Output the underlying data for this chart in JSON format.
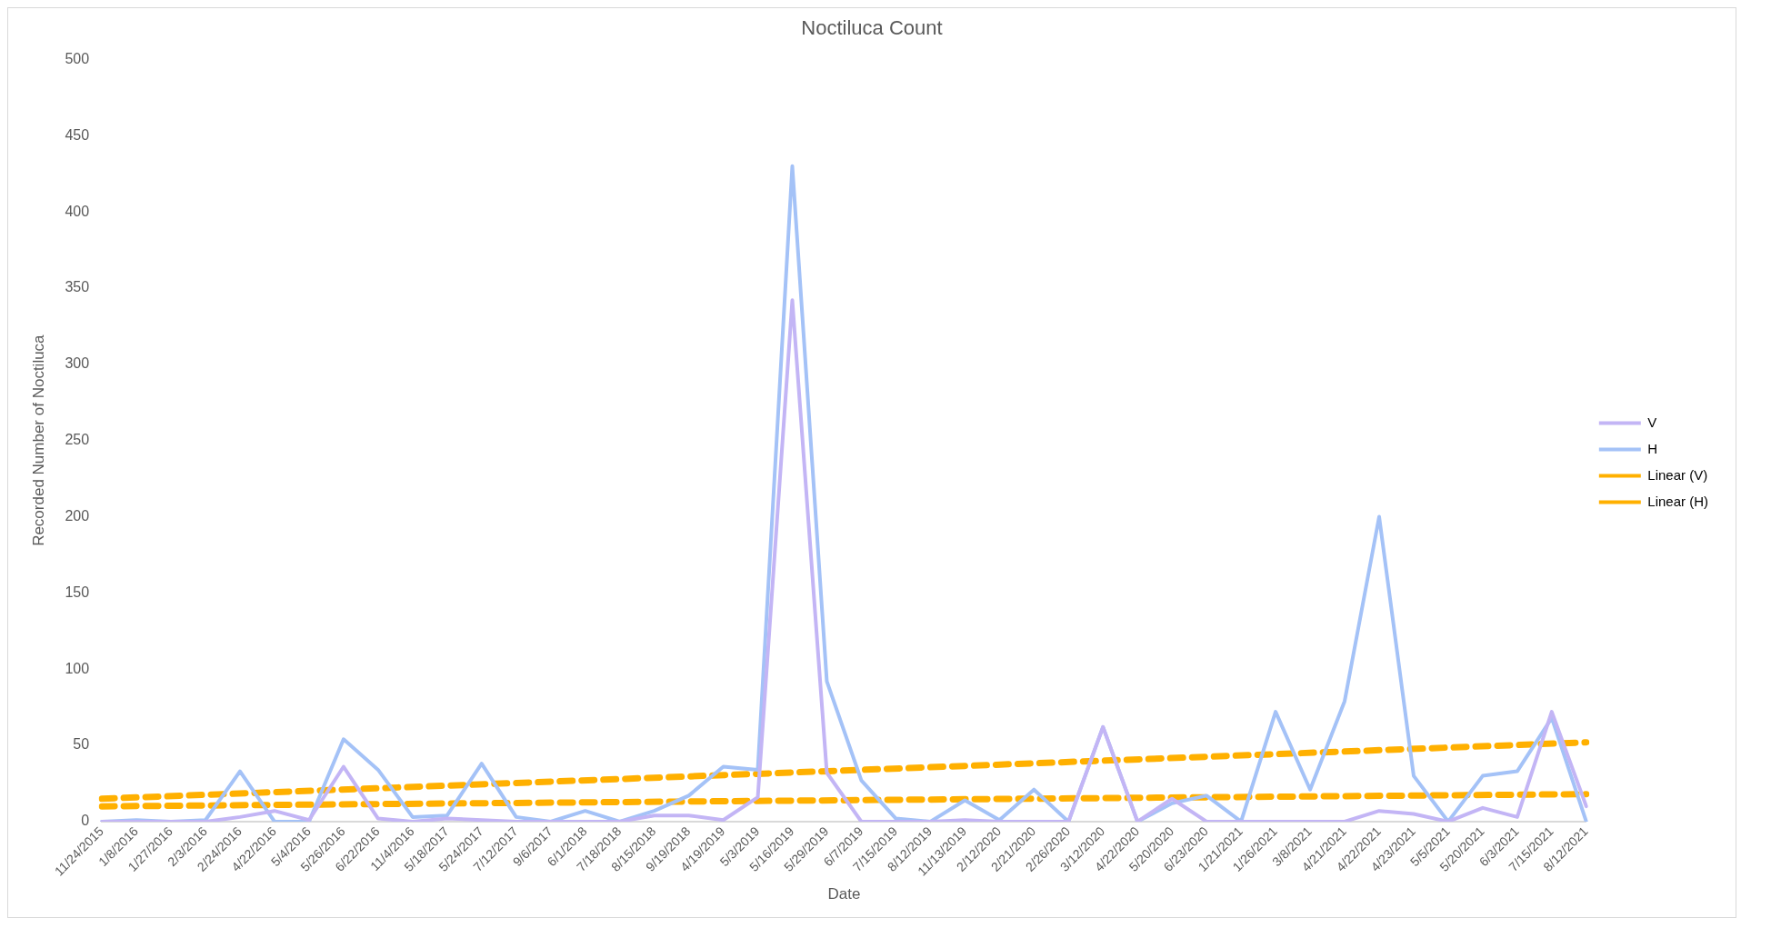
{
  "chart_data": {
    "type": "line",
    "title": "Noctiluca Count",
    "xlabel": "Date",
    "ylabel": "Recorded Number of Noctiluca",
    "categories": [
      "11/24/2015",
      "1/8/2016",
      "1/27/2016",
      "2/3/2016",
      "2/24/2016",
      "4/22/2016",
      "5/4/2016",
      "5/26/2016",
      "6/22/2016",
      "11/4/2016",
      "5/18/2017",
      "5/24/2017",
      "7/12/2017",
      "9/6/2017",
      "6/1/2018",
      "7/18/2018",
      "8/15/2018",
      "9/19/2018",
      "4/19/2019",
      "5/3/2019",
      "5/16/2019",
      "5/29/2019",
      "6/7/2019",
      "7/15/2019",
      "8/12/2019",
      "11/13/2019",
      "2/12/2020",
      "2/21/2020",
      "2/26/2020",
      "3/12/2020",
      "4/22/2020",
      "5/20/2020",
      "6/23/2020",
      "1/21/2021",
      "1/26/2021",
      "3/8/2021",
      "4/21/2021",
      "4/22/2021",
      "4/23/2021",
      "5/5/2021",
      "5/20/2021",
      "6/3/2021",
      "7/15/2021",
      "8/12/2021"
    ],
    "series": [
      {
        "name": "V",
        "color": "#c3b5f5",
        "values": [
          0,
          0,
          0,
          0,
          3,
          7,
          1,
          36,
          2,
          0,
          2,
          1,
          0,
          0,
          0,
          0,
          4,
          4,
          1,
          16,
          342,
          32,
          0,
          0,
          0,
          1,
          0,
          0,
          0,
          62,
          0,
          15,
          0,
          0,
          0,
          0,
          0,
          7,
          5,
          0,
          9,
          3,
          72,
          10
        ]
      },
      {
        "name": "H",
        "color": "#a4c2f7",
        "values": [
          0,
          1,
          0,
          1,
          33,
          0,
          0,
          54,
          34,
          3,
          4,
          38,
          3,
          0,
          7,
          0,
          7,
          17,
          36,
          34,
          430,
          92,
          27,
          2,
          0,
          14,
          1,
          21,
          0,
          62,
          0,
          12,
          17,
          0,
          72,
          21,
          79,
          200,
          30,
          0,
          30,
          33,
          68,
          0
        ]
      },
      {
        "name": "Linear (V)",
        "color": "#ffb000",
        "line_style": "dashed",
        "x": [
          "11/24/2015",
          "8/12/2021"
        ],
        "values": [
          10,
          18
        ]
      },
      {
        "name": "Linear (H)",
        "color": "#ffb000",
        "line_style": "dashed",
        "x": [
          "11/24/2015",
          "8/12/2021"
        ],
        "values": [
          15,
          52
        ]
      }
    ],
    "ylim": [
      0,
      500
    ],
    "yticks": [
      0,
      50,
      100,
      150,
      200,
      250,
      300,
      350,
      400,
      450,
      500
    ],
    "grid": false,
    "legend": "right",
    "marker": "none"
  }
}
